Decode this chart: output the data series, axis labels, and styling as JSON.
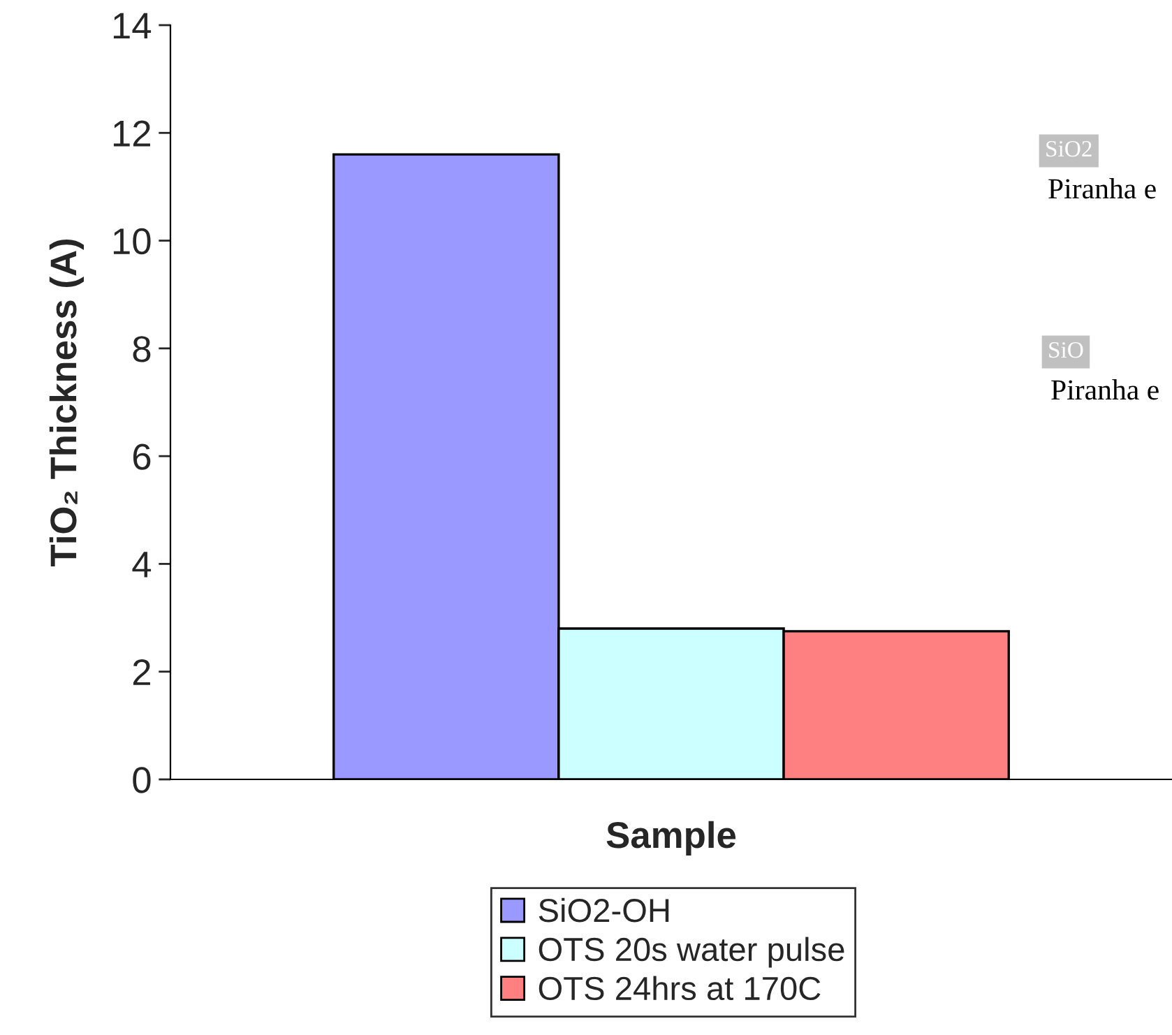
{
  "chart_data": {
    "type": "bar",
    "xlabel": "Sample",
    "ylabel": "TiO₂ Thickness (A)",
    "categories": [
      null
    ],
    "series": [
      {
        "name": "SiO2-OH",
        "color": "#9999ff",
        "values": [
          11.6
        ]
      },
      {
        "name": "OTS 20s water pulse",
        "color": "#ccffff",
        "values": [
          2.8
        ]
      },
      {
        "name": "OTS 24hrs at 170C",
        "color": "#ff8080",
        "values": [
          2.75
        ]
      }
    ],
    "ylim": [
      0,
      14
    ],
    "yticks": [
      0,
      2,
      4,
      6,
      8,
      10,
      12,
      14
    ],
    "grid": false,
    "legend": "bottom",
    "annotations": [
      "SiO2",
      "Piranha e",
      "SiO",
      "Piranha e"
    ]
  }
}
